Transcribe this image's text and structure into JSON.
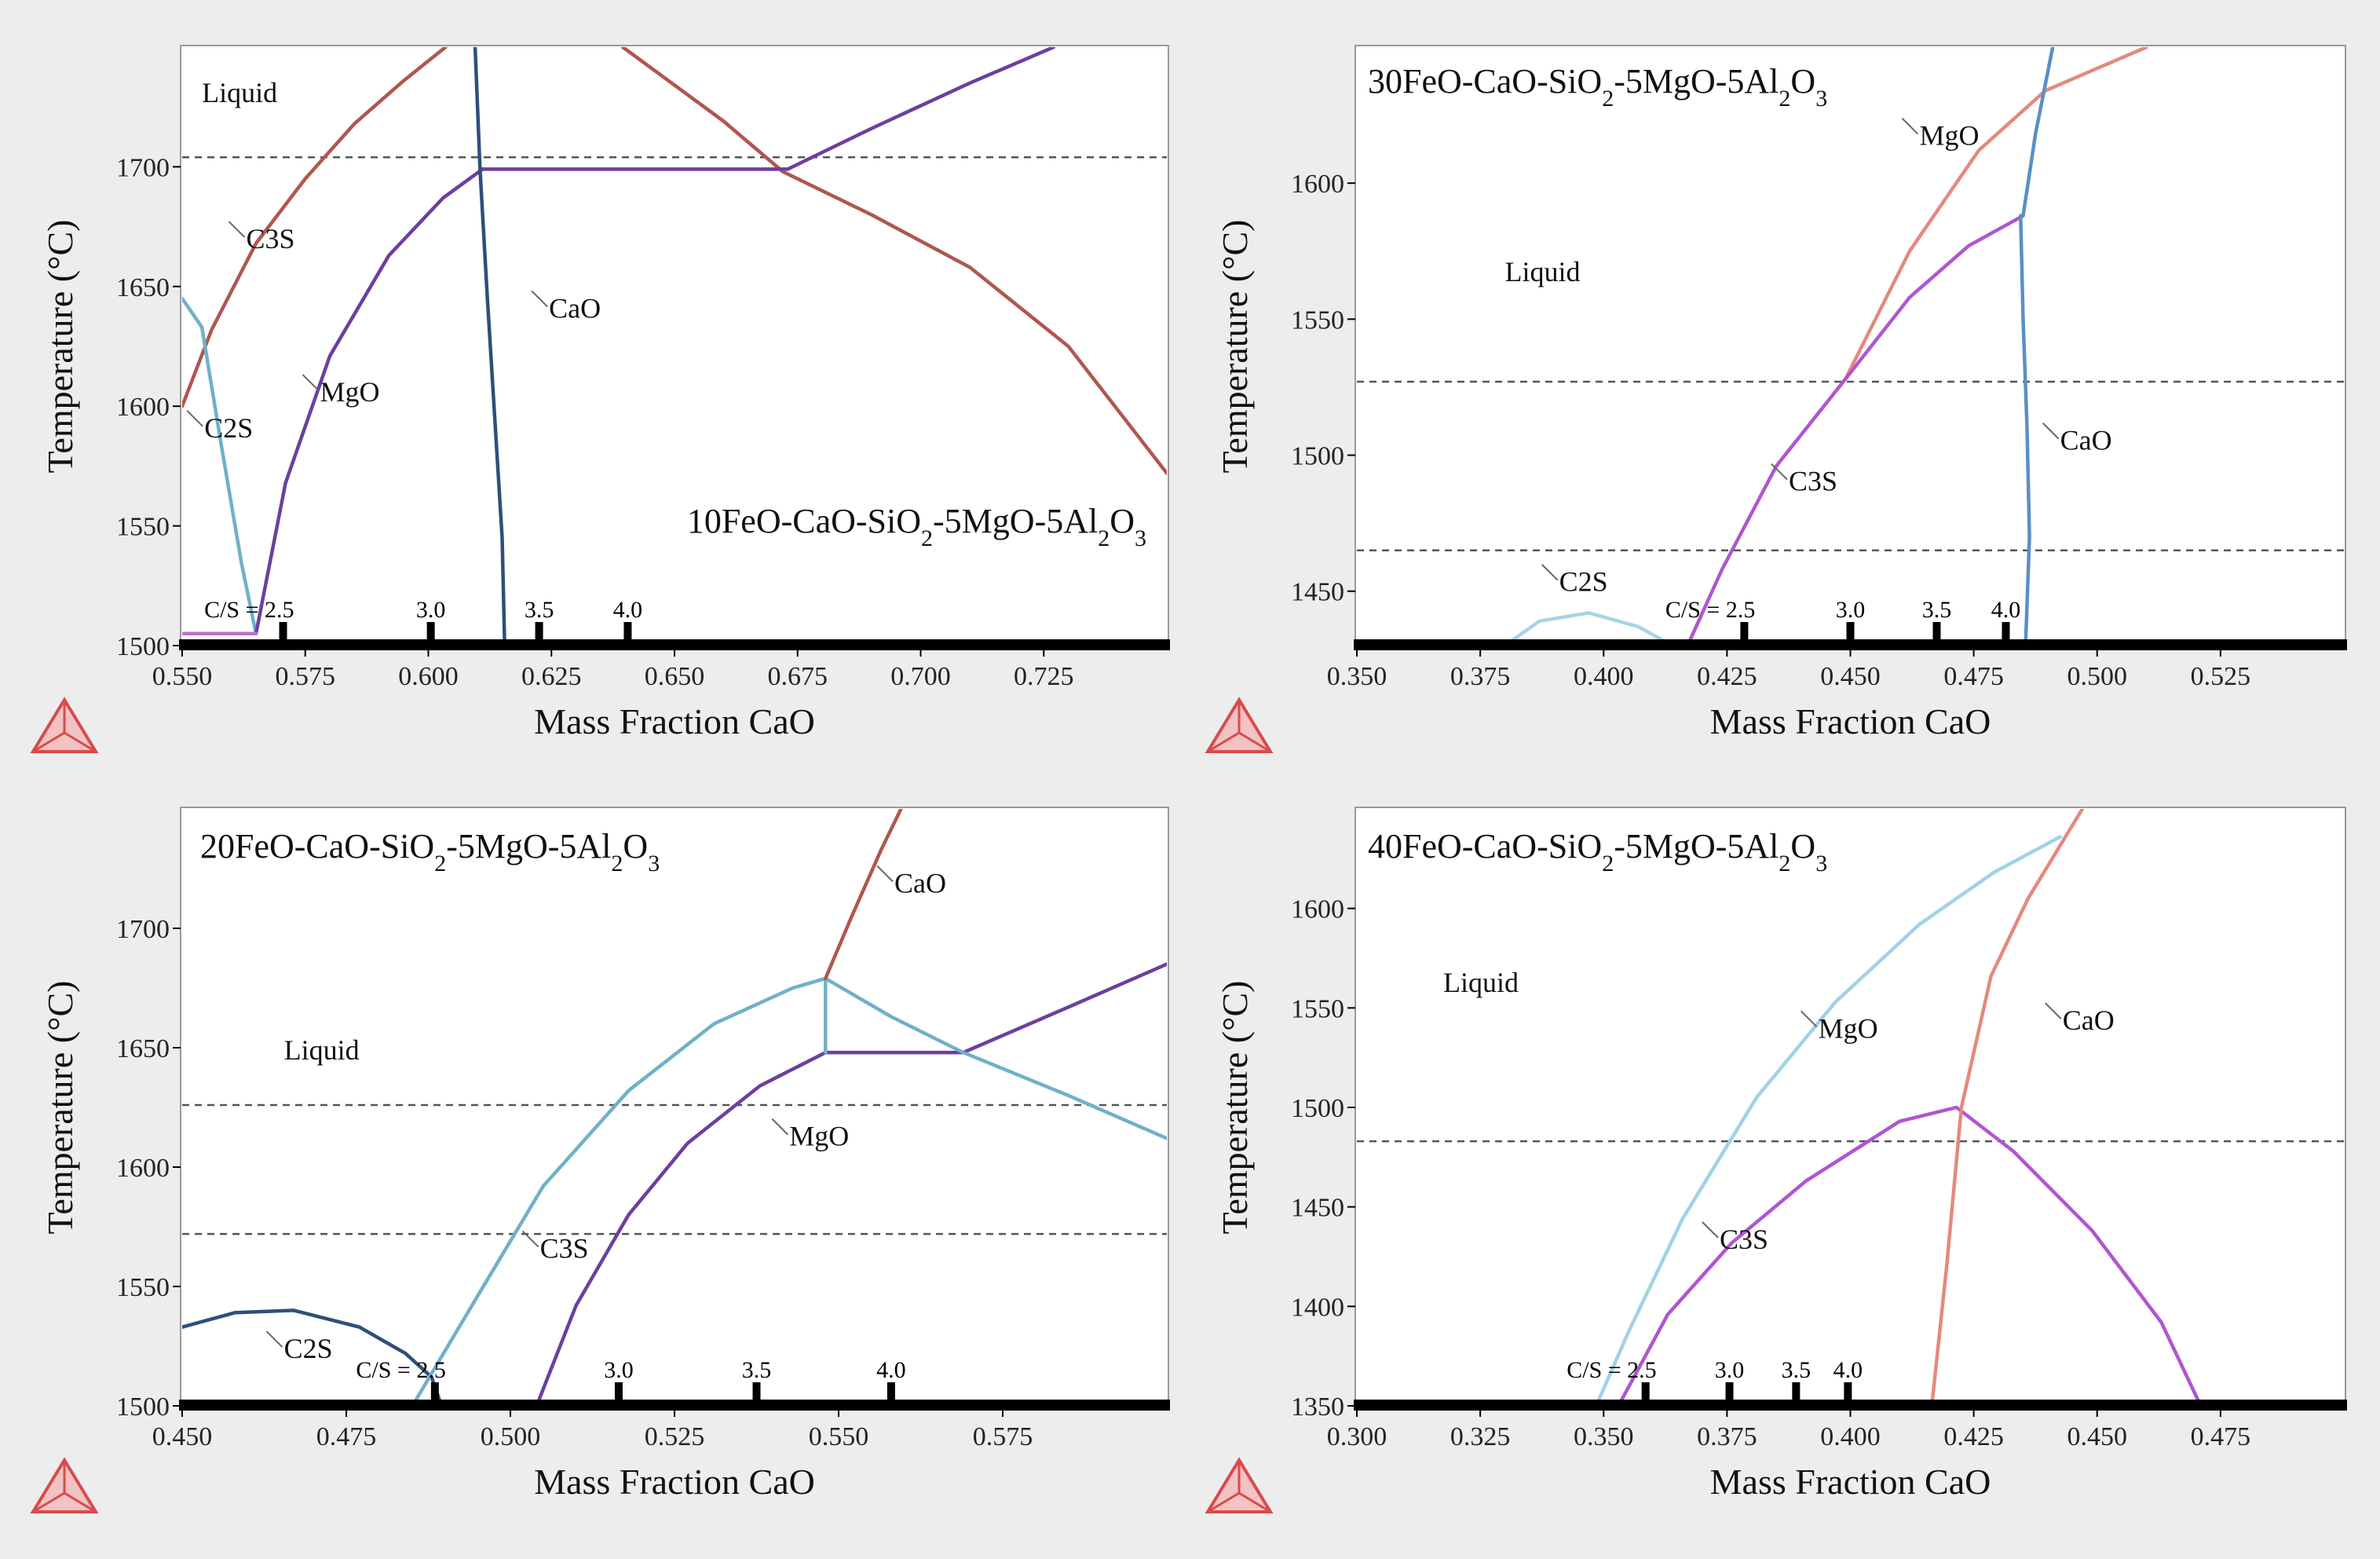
{
  "figure": {
    "background": "#ededed",
    "plot_background": "#ffffff",
    "logo_color": "#d84b4b",
    "frame_color": "#9a9a9a"
  },
  "chart_data": [
    {
      "type": "line",
      "title": "10FeO-CaO-SiO2-5MgO-5Al2O3",
      "title_parts": [
        "10FeO-CaO-SiO",
        "2",
        "-5MgO-5Al",
        "2",
        "O",
        "3"
      ],
      "xlabel": "Mass Fraction CaO",
      "ylabel": "Temperature (°C)",
      "xlim": [
        0.55,
        0.75
      ],
      "ylim": [
        1500,
        1750
      ],
      "xticks": [
        0.55,
        0.575,
        0.6,
        0.625,
        0.65,
        0.675,
        0.7,
        0.725
      ],
      "xtick_labels": [
        "0.550",
        "0.575",
        "0.600",
        "0.625",
        "0.650",
        "0.675",
        "0.700",
        "0.725"
      ],
      "yticks": [
        1500,
        1550,
        1600,
        1650,
        1700
      ],
      "ytick_labels": [
        "1500",
        "1550",
        "1600",
        "1650",
        "1700"
      ],
      "dashed_temperatures": [
        1704
      ],
      "cs_markers": [
        {
          "label": "C/S = 2.5",
          "x": 0.5705
        },
        {
          "label": "3.0",
          "x": 0.6005
        },
        {
          "label": "3.5",
          "x": 0.6225
        },
        {
          "label": "4.0",
          "x": 0.6405
        }
      ],
      "series": [
        {
          "name": "C3S",
          "color": "#b05650",
          "x": [
            0.55,
            0.556,
            0.565,
            0.575,
            0.585,
            0.595,
            0.6035
          ],
          "y": [
            1600,
            1632,
            1668,
            1695,
            1718,
            1736,
            1750
          ]
        },
        {
          "name": "C3S-right",
          "color": "#b05650",
          "x": [
            0.6395,
            0.66,
            0.672,
            0.69,
            0.71,
            0.73,
            0.75
          ],
          "y": [
            1750,
            1719,
            1698,
            1680,
            1658,
            1625,
            1572
          ]
        },
        {
          "name": "C2S",
          "color": "#6fb1c8",
          "x": [
            0.55,
            0.554,
            0.558,
            0.562,
            0.565
          ],
          "y": [
            1645,
            1633,
            1583,
            1535,
            1505
          ]
        },
        {
          "name": "MgO",
          "color": "#6c3f9e",
          "x": [
            0.565,
            0.571,
            0.58,
            0.592,
            0.603,
            0.611
          ],
          "y": [
            1505,
            1568,
            1621,
            1663,
            1687,
            1699
          ]
        },
        {
          "name": "CaO-MgO boundary",
          "color": "#6c3f9e",
          "x": [
            0.611,
            0.673
          ],
          "y": [
            1699,
            1699
          ]
        },
        {
          "name": "MgO-upper",
          "color": "#6c3f9e",
          "x": [
            0.673,
            0.69,
            0.71,
            0.727
          ],
          "y": [
            1699,
            1716,
            1735,
            1750
          ]
        },
        {
          "name": "solidus",
          "color": "#c070d0",
          "x": [
            0.55,
            0.565
          ],
          "y": [
            1505,
            1505
          ]
        },
        {
          "name": "CaO",
          "color": "#2f4f7a",
          "x": [
            0.6095,
            0.6105,
            0.612,
            0.6135,
            0.615,
            0.6155
          ],
          "y": [
            1750,
            1699,
            1645,
            1595,
            1545,
            1500
          ]
        }
      ],
      "annotations": [
        {
          "text": "Liquid",
          "x": 0.554,
          "y": 1727
        },
        {
          "text": "C3S",
          "x": 0.563,
          "y": 1666
        },
        {
          "text": "CaO",
          "x": 0.6245,
          "y": 1637
        },
        {
          "text": "MgO",
          "x": 0.578,
          "y": 1602
        },
        {
          "text": "C2S",
          "x": 0.5545,
          "y": 1587
        }
      ]
    },
    {
      "type": "line",
      "title": "30FeO-CaO-SiO2-5MgO-5Al2O3",
      "title_parts": [
        "30FeO-CaO-SiO",
        "2",
        "-5MgO-5Al",
        "2",
        "O",
        "3"
      ],
      "xlabel": "Mass Fraction CaO",
      "ylabel": "Temperature (°C)",
      "xlim": [
        0.35,
        0.55
      ],
      "ylim": [
        1430,
        1650
      ],
      "xticks": [
        0.35,
        0.375,
        0.4,
        0.425,
        0.45,
        0.475,
        0.5,
        0.525
      ],
      "xtick_labels": [
        "0.350",
        "0.375",
        "0.400",
        "0.425",
        "0.450",
        "0.475",
        "0.500",
        "0.525"
      ],
      "yticks": [
        1450,
        1500,
        1550,
        1600
      ],
      "ytick_labels": [
        "1450",
        "1500",
        "1550",
        "1600"
      ],
      "dashed_temperatures": [
        1527,
        1465
      ],
      "cs_markers": [
        {
          "label": "C/S = 2.5",
          "x": 0.4285
        },
        {
          "label": "3.0",
          "x": 0.45
        },
        {
          "label": "3.5",
          "x": 0.4675
        },
        {
          "label": "4.0",
          "x": 0.4815
        }
      ],
      "series": [
        {
          "name": "C2S",
          "color": "#a8d4e6",
          "x": [
            0.38,
            0.387,
            0.397,
            0.407,
            0.414
          ],
          "y": [
            1430,
            1439,
            1442,
            1437,
            1430
          ]
        },
        {
          "name": "MgO",
          "color": "#e38a7d",
          "x": [
            0.449,
            0.462,
            0.476,
            0.4895,
            0.51
          ],
          "y": [
            1528,
            1575,
            1612,
            1634,
            1650
          ]
        },
        {
          "name": "C3S",
          "color": "#b055d0",
          "x": [
            0.417,
            0.424,
            0.435,
            0.449,
            0.462,
            0.474,
            0.485
          ],
          "y": [
            1430,
            1458,
            1496,
            1528,
            1558,
            1577,
            1588
          ]
        },
        {
          "name": "CaO",
          "color": "#5b8fc4",
          "x": [
            0.4855,
            0.4863,
            0.4858,
            0.485,
            0.4845,
            0.4848
          ],
          "y": [
            1430,
            1470,
            1510,
            1550,
            1588,
            1588
          ]
        },
        {
          "name": "CaO-upper",
          "color": "#5b8fc4",
          "x": [
            0.485,
            0.4875,
            0.491
          ],
          "y": [
            1588,
            1618,
            1650
          ]
        }
      ],
      "annotations": [
        {
          "text": "Liquid",
          "x": 0.38,
          "y": 1564
        },
        {
          "text": "MgO",
          "x": 0.464,
          "y": 1614
        },
        {
          "text": "CaO",
          "x": 0.4925,
          "y": 1502
        },
        {
          "text": "C3S",
          "x": 0.4375,
          "y": 1487
        },
        {
          "text": "C2S",
          "x": 0.391,
          "y": 1450
        }
      ]
    },
    {
      "type": "line",
      "title": "20FeO-CaO-SiO2-5MgO-5Al2O3",
      "title_parts": [
        "20FeO-CaO-SiO",
        "2",
        "-5MgO-5Al",
        "2",
        "O",
        "3"
      ],
      "xlabel": "Mass Fraction CaO",
      "ylabel": "Temperature (°C)",
      "xlim": [
        0.45,
        0.6
      ],
      "ylim": [
        1500,
        1750
      ],
      "xticks": [
        0.45,
        0.475,
        0.5,
        0.525,
        0.55,
        0.575
      ],
      "xtick_labels": [
        "0.450",
        "0.475",
        "0.500",
        "0.525",
        "0.550",
        "0.575"
      ],
      "yticks": [
        1500,
        1550,
        1600,
        1650,
        1700
      ],
      "ytick_labels": [
        "1500",
        "1550",
        "1600",
        "1650",
        "1700"
      ],
      "dashed_temperatures": [
        1626,
        1572
      ],
      "cs_markers": [
        {
          "label": "C/S = 2.5",
          "x": 0.4885
        },
        {
          "label": "3.0",
          "x": 0.5165
        },
        {
          "label": "3.5",
          "x": 0.5375
        },
        {
          "label": "4.0",
          "x": 0.558
        }
      ],
      "series": [
        {
          "name": "C2S",
          "color": "#2f4f7a",
          "x": [
            0.45,
            0.458,
            0.467,
            0.477,
            0.484,
            0.488,
            0.4895
          ],
          "y": [
            1533,
            1539,
            1540,
            1533,
            1522,
            1512,
            1500
          ]
        },
        {
          "name": "C3S",
          "color": "#6fb1c8",
          "x": [
            0.4855,
            0.495,
            0.505,
            0.518,
            0.531,
            0.543,
            0.548
          ],
          "y": [
            1502,
            1546,
            1592,
            1632,
            1660,
            1675,
            1679
          ]
        },
        {
          "name": "MgO",
          "color": "#6c3f9e",
          "x": [
            0.504,
            0.51,
            0.518,
            0.527,
            0.538,
            0.548
          ],
          "y": [
            1500,
            1542,
            1580,
            1610,
            1634,
            1648
          ]
        },
        {
          "name": "MgO-boundary",
          "color": "#6c3f9e",
          "x": [
            0.548,
            0.569
          ],
          "y": [
            1648,
            1648
          ]
        },
        {
          "name": "MgO-upper",
          "color": "#6c3f9e",
          "x": [
            0.569,
            0.585,
            0.6
          ],
          "y": [
            1648,
            1667,
            1685
          ]
        },
        {
          "name": "CaO-liq",
          "color": "#6fb1c8",
          "x": [
            0.548,
            0.558,
            0.569,
            0.585,
            0.6
          ],
          "y": [
            1679,
            1663,
            1648,
            1630,
            1612
          ]
        },
        {
          "name": "CaO-join",
          "color": "#6fb1c8",
          "x": [
            0.548,
            0.548
          ],
          "y": [
            1648,
            1679
          ]
        },
        {
          "name": "CaO",
          "color": "#b05650",
          "x": [
            0.548,
            0.552,
            0.5565,
            0.5595
          ],
          "y": [
            1679,
            1705,
            1733,
            1750
          ]
        }
      ],
      "annotations": [
        {
          "text": "CaO",
          "x": 0.5585,
          "y": 1715
        },
        {
          "text": "Liquid",
          "x": 0.4655,
          "y": 1645
        },
        {
          "text": "MgO",
          "x": 0.5425,
          "y": 1609
        },
        {
          "text": "C3S",
          "x": 0.5045,
          "y": 1562
        },
        {
          "text": "C2S",
          "x": 0.4655,
          "y": 1520
        }
      ]
    },
    {
      "type": "line",
      "title": "40FeO-CaO-SiO2-5MgO-5Al2O3",
      "title_parts": [
        "40FeO-CaO-SiO",
        "2",
        "-5MgO-5Al",
        "2",
        "O",
        "3"
      ],
      "xlabel": "Mass Fraction CaO",
      "ylabel": "Temperature (°C)",
      "xlim": [
        0.3,
        0.5
      ],
      "ylim": [
        1350,
        1650
      ],
      "xticks": [
        0.3,
        0.325,
        0.35,
        0.375,
        0.4,
        0.425,
        0.45,
        0.475
      ],
      "xtick_labels": [
        "0.300",
        "0.325",
        "0.350",
        "0.375",
        "0.400",
        "0.425",
        "0.450",
        "0.475"
      ],
      "yticks": [
        1350,
        1400,
        1450,
        1500,
        1550,
        1600
      ],
      "ytick_labels": [
        "1350",
        "1400",
        "1450",
        "1500",
        "1550",
        "1600"
      ],
      "dashed_temperatures": [
        1483
      ],
      "cs_markers": [
        {
          "label": "C/S = 2.5",
          "x": 0.3585
        },
        {
          "label": "3.0",
          "x": 0.3755
        },
        {
          "label": "3.5",
          "x": 0.389
        },
        {
          "label": "4.0",
          "x": 0.3995
        }
      ],
      "series": [
        {
          "name": "MgO",
          "color": "#a0d2e6",
          "x": [
            0.3485,
            0.355,
            0.366,
            0.381,
            0.397,
            0.414,
            0.429,
            0.4425
          ],
          "y": [
            1350,
            1387,
            1444,
            1505,
            1553,
            1592,
            1618,
            1636
          ]
        },
        {
          "name": "C3S",
          "color": "#b055d0",
          "x": [
            0.353,
            0.363,
            0.376,
            0.391,
            0.41,
            0.4215
          ],
          "y": [
            1350,
            1396,
            1432,
            1463,
            1493,
            1500
          ]
        },
        {
          "name": "C3S-right",
          "color": "#b055d0",
          "x": [
            0.4215,
            0.433,
            0.449,
            0.463,
            0.471
          ],
          "y": [
            1500,
            1478,
            1438,
            1392,
            1350
          ]
        },
        {
          "name": "CaO",
          "color": "#e38a7d",
          "x": [
            0.4165,
            0.4195,
            0.4225,
            0.4285,
            0.436,
            0.447
          ],
          "y": [
            1350,
            1420,
            1500,
            1566,
            1605,
            1650
          ]
        }
      ],
      "annotations": [
        {
          "text": "Liquid",
          "x": 0.3175,
          "y": 1558
        },
        {
          "text": "MgO",
          "x": 0.3935,
          "y": 1535
        },
        {
          "text": "CaO",
          "x": 0.443,
          "y": 1539
        },
        {
          "text": "C3S",
          "x": 0.3735,
          "y": 1429
        }
      ]
    }
  ]
}
